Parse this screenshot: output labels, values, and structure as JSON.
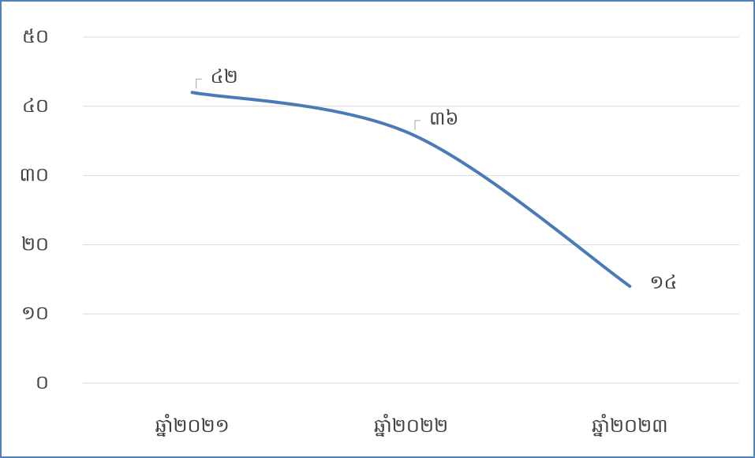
{
  "chart_data": {
    "type": "line",
    "categories": [
      "ឆ្នាំ២០២១",
      "ឆ្នាំ២០២២",
      "ឆ្នាំ២០២៣"
    ],
    "series": [
      {
        "name": null,
        "color": "#4a7ab8",
        "values": [
          42,
          36,
          14
        ],
        "value_labels": [
          "៤២",
          "៣៦",
          "១៤"
        ]
      }
    ],
    "ylim": [
      0,
      50
    ],
    "yticks": [
      {
        "value": 0,
        "label": "០"
      },
      {
        "value": 10,
        "label": "១០"
      },
      {
        "value": 20,
        "label": "២០"
      },
      {
        "value": 30,
        "label": "៣០"
      },
      {
        "value": 40,
        "label": "៤០"
      },
      {
        "value": 50,
        "label": "៥០"
      }
    ],
    "grid": true,
    "smooth": true
  }
}
